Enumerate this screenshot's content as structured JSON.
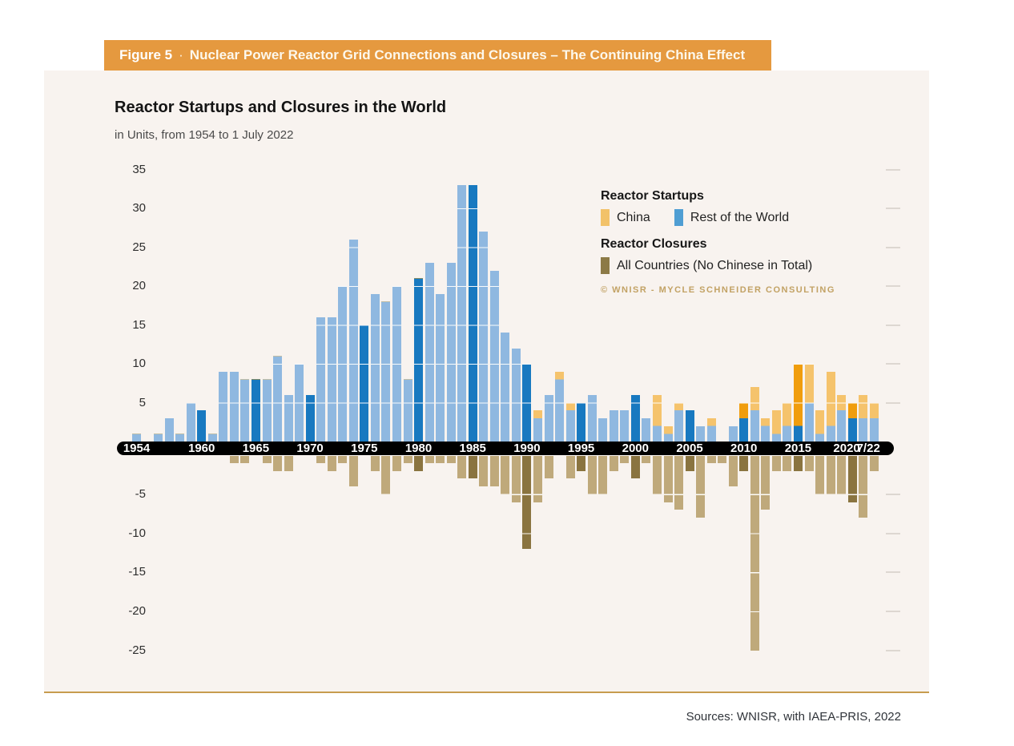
{
  "banner": {
    "label": "Figure 5",
    "separator": "·",
    "title": "Nuclear Power Reactor Grid Connections and Closures – The Continuing China Effect"
  },
  "legend": {
    "startups_title": "Reactor Startups",
    "china_label": "China",
    "rest_label": "Rest of the World",
    "closures_title": "Reactor Closures",
    "closures_label": "All Countries (No Chinese in Total)",
    "copyright": "© WNISR - Mycle Schneider Consulting"
  },
  "source": "Sources: WNISR, with IAEA-PRIS, 2022",
  "colors": {
    "banner": "#e5993f",
    "panel_bg": "#f8f3ef",
    "china_light": "#f5c36c",
    "china_dark": "#f09d0d",
    "rest_light": "#8fb8e0",
    "rest_dark": "#1879c0",
    "closure_light": "#bfa97b",
    "closure_dark": "#8a7440",
    "axis_band": "#000000",
    "accent_line": "#c79c4e"
  },
  "chart_data": {
    "type": "bar",
    "stacked": true,
    "title": "Reactor Startups and Closures in the World",
    "subtitle": "in Units, from 1954 to 1 July 2022",
    "ylabel": "Units",
    "ylim": [
      -25,
      35
    ],
    "ytick_interval": 5,
    "grid": "white lines over bars only",
    "legend_position": "upper right",
    "x_axis_labels": [
      "1954",
      "1960",
      "1965",
      "1970",
      "1975",
      "1980",
      "1985",
      "1990",
      "1995",
      "2000",
      "2005",
      "2010",
      "2015",
      "2020",
      "7/22"
    ],
    "note": "Years labeled on the axis are drawn in darker shades; closures plotted downward as negative units",
    "years": [
      {
        "year": "1954",
        "startups_china": 0,
        "startups_rest": 1,
        "closures": 0,
        "highlight": false
      },
      {
        "year": "1955",
        "startups_china": 0,
        "startups_rest": 0,
        "closures": 0,
        "highlight": false
      },
      {
        "year": "1956",
        "startups_china": 0,
        "startups_rest": 1,
        "closures": 0,
        "highlight": false
      },
      {
        "year": "1957",
        "startups_china": 0,
        "startups_rest": 3,
        "closures": 0,
        "highlight": false
      },
      {
        "year": "1958",
        "startups_china": 0,
        "startups_rest": 1,
        "closures": 0,
        "highlight": false
      },
      {
        "year": "1959",
        "startups_china": 0,
        "startups_rest": 5,
        "closures": 0,
        "highlight": false
      },
      {
        "year": "1960",
        "startups_china": 0,
        "startups_rest": 4,
        "closures": 0,
        "highlight": true
      },
      {
        "year": "1961",
        "startups_china": 0,
        "startups_rest": 1,
        "closures": 0,
        "highlight": false
      },
      {
        "year": "1962",
        "startups_china": 0,
        "startups_rest": 9,
        "closures": 0,
        "highlight": false
      },
      {
        "year": "1963",
        "startups_china": 0,
        "startups_rest": 9,
        "closures": 1,
        "highlight": false
      },
      {
        "year": "1964",
        "startups_china": 0,
        "startups_rest": 8,
        "closures": 1,
        "highlight": false
      },
      {
        "year": "1965",
        "startups_china": 0,
        "startups_rest": 8,
        "closures": 0,
        "highlight": true
      },
      {
        "year": "1966",
        "startups_china": 0,
        "startups_rest": 8,
        "closures": 1,
        "highlight": false
      },
      {
        "year": "1967",
        "startups_china": 0,
        "startups_rest": 11,
        "closures": 2,
        "highlight": false
      },
      {
        "year": "1968",
        "startups_china": 0,
        "startups_rest": 6,
        "closures": 2,
        "highlight": false
      },
      {
        "year": "1969",
        "startups_china": 0,
        "startups_rest": 10,
        "closures": 0,
        "highlight": false
      },
      {
        "year": "1970",
        "startups_china": 0,
        "startups_rest": 6,
        "closures": 0,
        "highlight": true
      },
      {
        "year": "1971",
        "startups_china": 0,
        "startups_rest": 16,
        "closures": 1,
        "highlight": false
      },
      {
        "year": "1972",
        "startups_china": 0,
        "startups_rest": 16,
        "closures": 2,
        "highlight": false
      },
      {
        "year": "1973",
        "startups_china": 0,
        "startups_rest": 20,
        "closures": 1,
        "highlight": false
      },
      {
        "year": "1974",
        "startups_china": 0,
        "startups_rest": 26,
        "closures": 4,
        "highlight": false
      },
      {
        "year": "1975",
        "startups_china": 0,
        "startups_rest": 15,
        "closures": 0,
        "highlight": true
      },
      {
        "year": "1976",
        "startups_china": 0,
        "startups_rest": 19,
        "closures": 2,
        "highlight": false
      },
      {
        "year": "1977",
        "startups_china": 0,
        "startups_rest": 18,
        "closures": 5,
        "highlight": false
      },
      {
        "year": "1978",
        "startups_china": 0,
        "startups_rest": 20,
        "closures": 2,
        "highlight": false
      },
      {
        "year": "1979",
        "startups_china": 0,
        "startups_rest": 8,
        "closures": 1,
        "highlight": false
      },
      {
        "year": "1980",
        "startups_china": 0,
        "startups_rest": 21,
        "closures": 2,
        "highlight": true
      },
      {
        "year": "1981",
        "startups_china": 0,
        "startups_rest": 23,
        "closures": 1,
        "highlight": false
      },
      {
        "year": "1982",
        "startups_china": 0,
        "startups_rest": 19,
        "closures": 1,
        "highlight": false
      },
      {
        "year": "1983",
        "startups_china": 0,
        "startups_rest": 23,
        "closures": 1,
        "highlight": false
      },
      {
        "year": "1984",
        "startups_china": 0,
        "startups_rest": 33,
        "closures": 3,
        "highlight": false
      },
      {
        "year": "1985",
        "startups_china": 0,
        "startups_rest": 33,
        "closures": 3,
        "highlight": true
      },
      {
        "year": "1986",
        "startups_china": 0,
        "startups_rest": 27,
        "closures": 4,
        "highlight": false
      },
      {
        "year": "1987",
        "startups_china": 0,
        "startups_rest": 22,
        "closures": 4,
        "highlight": false
      },
      {
        "year": "1988",
        "startups_china": 0,
        "startups_rest": 14,
        "closures": 5,
        "highlight": false
      },
      {
        "year": "1989",
        "startups_china": 0,
        "startups_rest": 12,
        "closures": 6,
        "highlight": false
      },
      {
        "year": "1990",
        "startups_china": 0,
        "startups_rest": 10,
        "closures": 12,
        "highlight": true
      },
      {
        "year": "1991",
        "startups_china": 1,
        "startups_rest": 3,
        "closures": 6,
        "highlight": false
      },
      {
        "year": "1992",
        "startups_china": 0,
        "startups_rest": 6,
        "closures": 3,
        "highlight": false
      },
      {
        "year": "1993",
        "startups_china": 1,
        "startups_rest": 8,
        "closures": 0,
        "highlight": false
      },
      {
        "year": "1994",
        "startups_china": 1,
        "startups_rest": 4,
        "closures": 3,
        "highlight": false
      },
      {
        "year": "1995",
        "startups_china": 0,
        "startups_rest": 5,
        "closures": 2,
        "highlight": true
      },
      {
        "year": "1996",
        "startups_china": 0,
        "startups_rest": 6,
        "closures": 5,
        "highlight": false
      },
      {
        "year": "1997",
        "startups_china": 0,
        "startups_rest": 3,
        "closures": 5,
        "highlight": false
      },
      {
        "year": "1998",
        "startups_china": 0,
        "startups_rest": 4,
        "closures": 2,
        "highlight": false
      },
      {
        "year": "1999",
        "startups_china": 0,
        "startups_rest": 4,
        "closures": 1,
        "highlight": false
      },
      {
        "year": "2000",
        "startups_china": 0,
        "startups_rest": 6,
        "closures": 3,
        "highlight": true
      },
      {
        "year": "2001",
        "startups_china": 0,
        "startups_rest": 3,
        "closures": 1,
        "highlight": false
      },
      {
        "year": "2002",
        "startups_china": 4,
        "startups_rest": 2,
        "closures": 5,
        "highlight": false
      },
      {
        "year": "2003",
        "startups_china": 1,
        "startups_rest": 1,
        "closures": 6,
        "highlight": false
      },
      {
        "year": "2004",
        "startups_china": 1,
        "startups_rest": 4,
        "closures": 7,
        "highlight": false
      },
      {
        "year": "2005",
        "startups_china": 0,
        "startups_rest": 4,
        "closures": 2,
        "highlight": true
      },
      {
        "year": "2006",
        "startups_china": 0,
        "startups_rest": 2,
        "closures": 8,
        "highlight": false
      },
      {
        "year": "2007",
        "startups_china": 1,
        "startups_rest": 2,
        "closures": 1,
        "highlight": false
      },
      {
        "year": "2008",
        "startups_china": 0,
        "startups_rest": 0,
        "closures": 1,
        "highlight": false
      },
      {
        "year": "2009",
        "startups_china": 0,
        "startups_rest": 2,
        "closures": 4,
        "highlight": false
      },
      {
        "year": "2010",
        "startups_china": 2,
        "startups_rest": 3,
        "closures": 2,
        "highlight": true
      },
      {
        "year": "2011",
        "startups_china": 3,
        "startups_rest": 4,
        "closures": 25,
        "highlight": false
      },
      {
        "year": "2012",
        "startups_china": 1,
        "startups_rest": 2,
        "closures": 7,
        "highlight": false
      },
      {
        "year": "2013",
        "startups_china": 3,
        "startups_rest": 1,
        "closures": 2,
        "highlight": false
      },
      {
        "year": "2014",
        "startups_china": 3,
        "startups_rest": 2,
        "closures": 2,
        "highlight": false
      },
      {
        "year": "2015",
        "startups_china": 8,
        "startups_rest": 2,
        "closures": 2,
        "highlight": true
      },
      {
        "year": "2016",
        "startups_china": 5,
        "startups_rest": 5,
        "closures": 2,
        "highlight": false
      },
      {
        "year": "2017",
        "startups_china": 3,
        "startups_rest": 1,
        "closures": 5,
        "highlight": false
      },
      {
        "year": "2018",
        "startups_china": 7,
        "startups_rest": 2,
        "closures": 5,
        "highlight": false
      },
      {
        "year": "2019",
        "startups_china": 2,
        "startups_rest": 4,
        "closures": 5,
        "highlight": false
      },
      {
        "year": "2020",
        "startups_china": 2,
        "startups_rest": 3,
        "closures": 6,
        "highlight": true
      },
      {
        "year": "2021",
        "startups_china": 3,
        "startups_rest": 3,
        "closures": 8,
        "highlight": false
      },
      {
        "year": "7/22",
        "startups_china": 2,
        "startups_rest": 3,
        "closures": 2,
        "highlight": false
      }
    ]
  }
}
